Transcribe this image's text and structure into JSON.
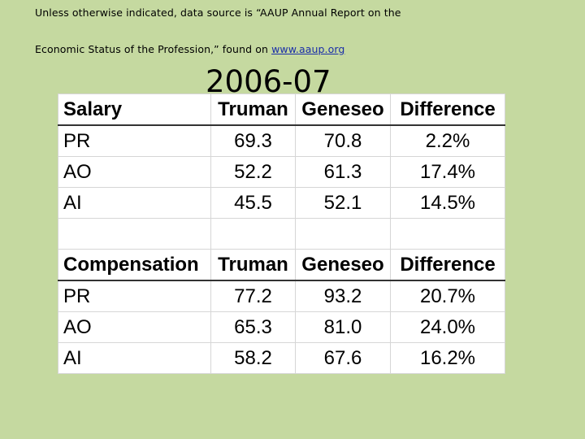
{
  "source_note": {
    "line1": "Unless otherwise indicated, data source is “AAUP Annual Report on the",
    "line2_text": "Economic Status of the Profession,” found on ",
    "link": "www.aaup.org"
  },
  "year_title": "2006-07",
  "tables": [
    {
      "headers": [
        "Salary",
        "Truman",
        "Geneseo",
        "Difference"
      ],
      "rows": [
        [
          "PR",
          "69.3",
          "70.8",
          "2.2%"
        ],
        [
          "AO",
          "52.2",
          "61.3",
          "17.4%"
        ],
        [
          "AI",
          "45.5",
          "52.1",
          "14.5%"
        ]
      ]
    },
    {
      "headers": [
        "Compensation",
        "Truman",
        "Geneseo",
        "Difference"
      ],
      "rows": [
        [
          "PR",
          "77.2",
          "93.2",
          "20.7%"
        ],
        [
          "AO",
          "65.3",
          "81.0",
          "24.0%"
        ],
        [
          "AI",
          "58.2",
          "67.6",
          "16.2%"
        ]
      ]
    }
  ]
}
